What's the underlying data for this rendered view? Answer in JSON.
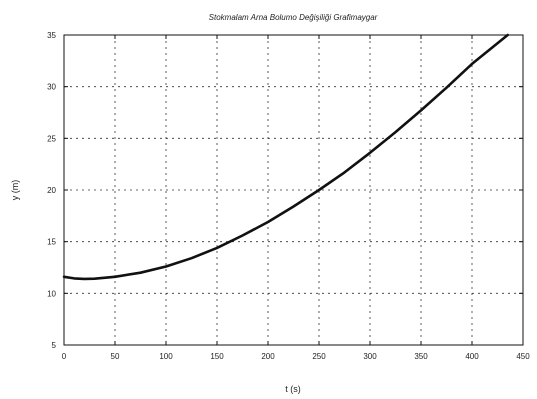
{
  "chart_data": {
    "type": "line",
    "title": "Stokmalam Arna Bolumo Değişiliği Grafimaygar",
    "xlabel": "t (s)",
    "ylabel": "y (m)",
    "xlim": [
      0,
      450
    ],
    "ylim": [
      5,
      35
    ],
    "x_ticks": [
      0,
      50,
      100,
      150,
      200,
      250,
      300,
      350,
      400,
      450
    ],
    "x_tick_labels": [
      "0",
      "50",
      "100",
      "150",
      "200",
      "250",
      "300",
      "350",
      "400",
      "450"
    ],
    "y_ticks": [
      5,
      10,
      15,
      20,
      25,
      30,
      35
    ],
    "y_tick_labels": [
      "5",
      "10",
      "15",
      "20",
      "25",
      "30",
      "35"
    ],
    "grid": true,
    "legend": false,
    "line_color": "#111111",
    "series": [
      {
        "x": [
          0,
          10,
          20,
          30,
          50,
          75,
          100,
          125,
          150,
          175,
          200,
          225,
          250,
          275,
          300,
          325,
          350,
          375,
          400,
          420,
          435
        ],
        "y": [
          11.6,
          11.45,
          11.4,
          11.42,
          11.6,
          12.0,
          12.6,
          13.4,
          14.4,
          15.6,
          16.9,
          18.4,
          20.0,
          21.7,
          23.6,
          25.6,
          27.7,
          29.9,
          32.2,
          33.8,
          35.0
        ]
      }
    ]
  }
}
